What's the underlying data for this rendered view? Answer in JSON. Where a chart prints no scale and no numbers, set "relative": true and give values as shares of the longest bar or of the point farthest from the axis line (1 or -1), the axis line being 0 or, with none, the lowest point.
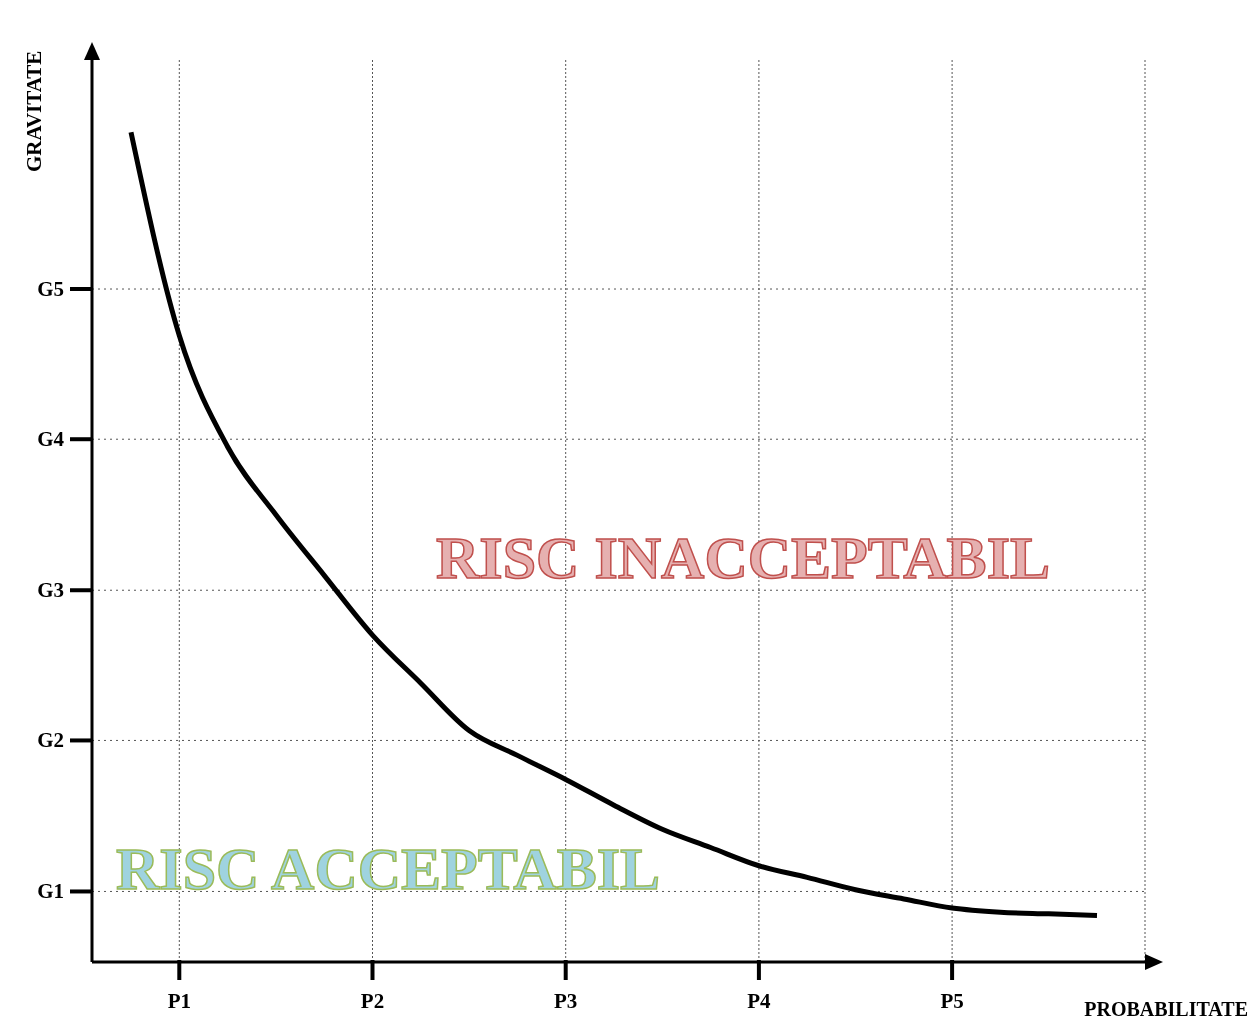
{
  "chart_data": {
    "type": "line",
    "xlabel": "PROBABILITATE",
    "ylabel": "GRAVITATE",
    "relative": true,
    "categories": [
      null,
      "P1",
      null,
      null,
      null,
      "P2",
      null,
      null,
      null,
      "P3",
      null,
      null,
      null,
      "P4",
      null,
      null,
      null,
      "P5",
      null,
      null,
      null
    ],
    "grid": "x",
    "marker": "none",
    "line_style": "solid",
    "series": [
      {
        "color": "#000000",
        "values": [
          1,
          0.755,
          0.621,
          0.539,
          0.466,
          0.394,
          0.336,
          0.279,
          0.249,
          0.22,
          0.189,
          0.16,
          0.138,
          0.116,
          0.102,
          0.087,
          0.076,
          0.065,
          0.06,
          0.058,
          0.056
        ]
      }
    ],
    "ref_lines": [
      {
        "axis": "y",
        "value": 0.085,
        "label": "G1"
      },
      {
        "axis": "y",
        "value": 0.267,
        "label": "G2"
      },
      {
        "axis": "y",
        "value": 0.448,
        "label": "G3"
      },
      {
        "axis": "y",
        "value": 0.63,
        "label": "G4"
      },
      {
        "axis": "y",
        "value": 0.811,
        "label": "G5"
      }
    ],
    "annotations": [
      "RISC INACCEPTABIL",
      "RISC ACCEPTABIL"
    ]
  }
}
